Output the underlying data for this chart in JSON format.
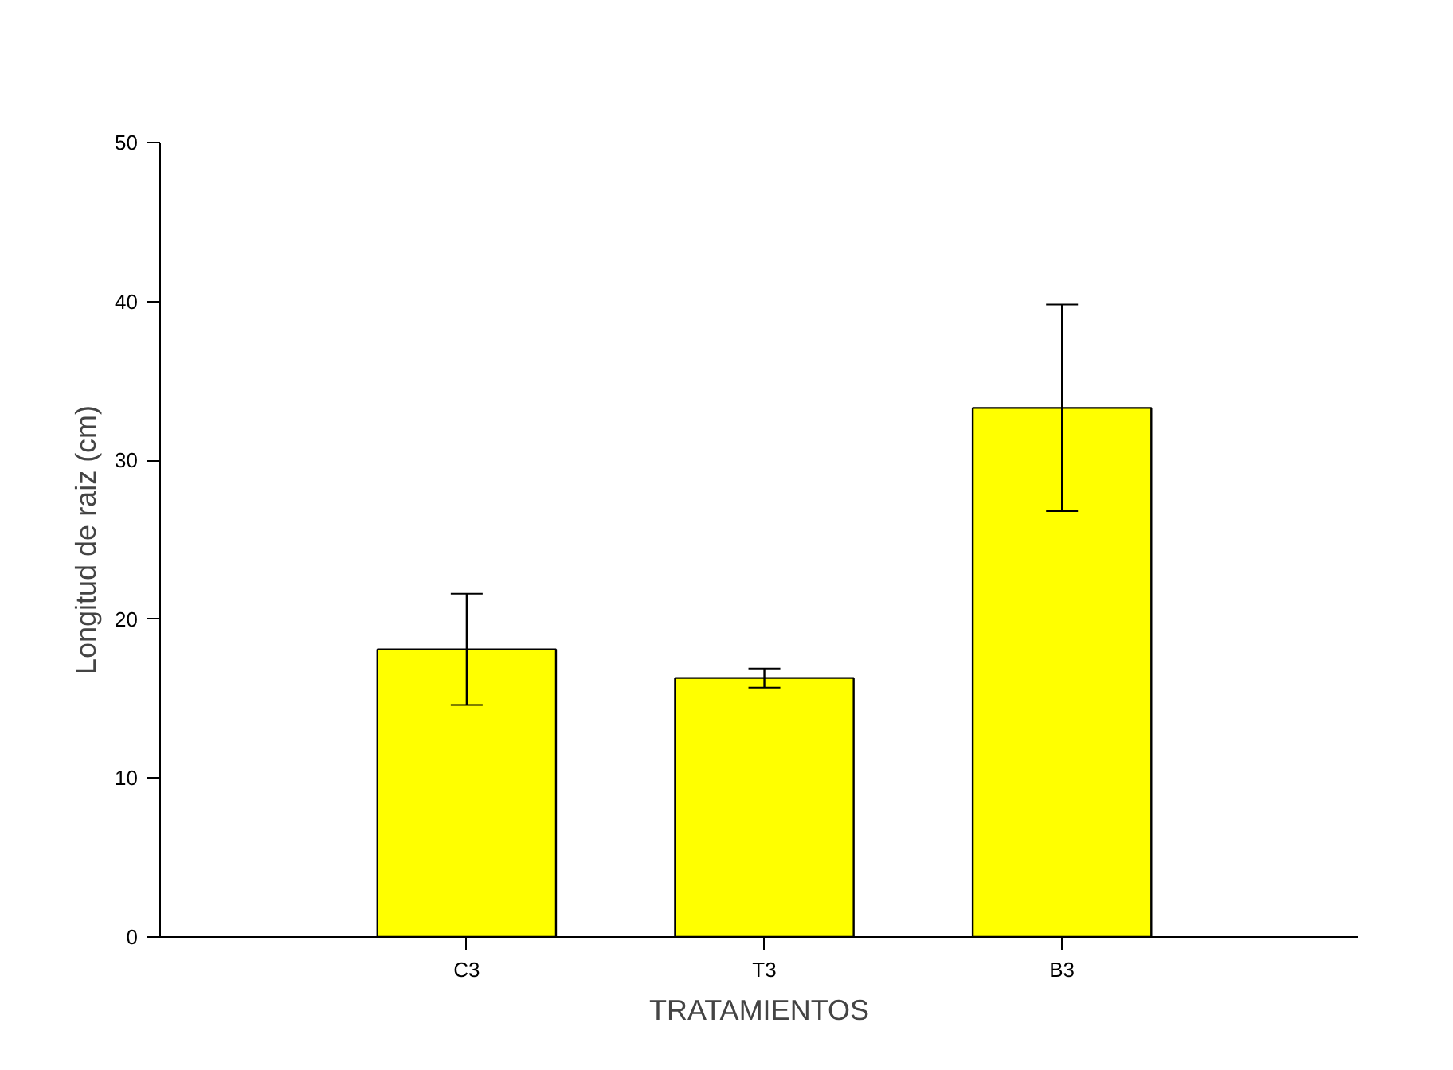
{
  "chart_data": {
    "type": "bar",
    "xlabel": "TRATAMIENTOS",
    "ylabel": "Longitud de raiz (cm)",
    "categories": [
      "C3",
      "T3",
      "B3"
    ],
    "values": [
      18.1,
      16.3,
      33.3
    ],
    "errors": [
      [
        14.6,
        21.6
      ],
      [
        15.7,
        16.9
      ],
      [
        26.8,
        39.8
      ]
    ],
    "color": "#ffff00",
    "ylim": [
      0,
      50
    ],
    "yticks": [
      0,
      10,
      20,
      30,
      40,
      50
    ],
    "grid": false
  }
}
